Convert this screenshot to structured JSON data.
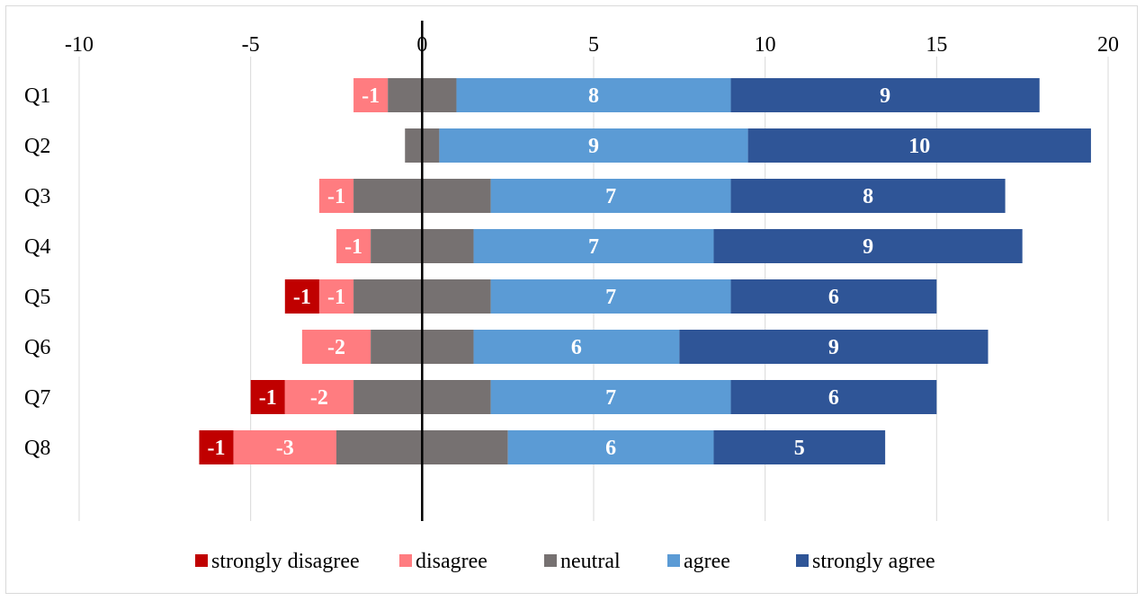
{
  "chart_data": {
    "type": "bar",
    "orientation": "horizontal",
    "stacked": true,
    "diverging": true,
    "title": "",
    "xlabel": "",
    "ylabel": "",
    "xlim": [
      -10,
      20
    ],
    "x_ticks": [
      -10,
      -5,
      0,
      5,
      10,
      15,
      20
    ],
    "x_axis_position": "top",
    "grid": "vertical",
    "legend_position": "bottom",
    "categories": [
      "Q1",
      "Q2",
      "Q3",
      "Q4",
      "Q5",
      "Q6",
      "Q7",
      "Q8"
    ],
    "series": [
      {
        "name": "strongly disagree",
        "color": "#c00000",
        "label_color": "#ffffff",
        "values": [
          0,
          0,
          0,
          0,
          1,
          0,
          1,
          1
        ],
        "labels": [
          "",
          "",
          "",
          "",
          "-1",
          "",
          "-1",
          "-1"
        ]
      },
      {
        "name": "disagree",
        "color": "#ff7c80",
        "label_color": "#ffffff",
        "values": [
          1,
          0,
          1,
          1,
          1,
          2,
          2,
          3
        ],
        "labels": [
          "-1",
          "",
          "-1",
          "-1",
          "-1",
          "-2",
          "-2",
          "-3"
        ]
      },
      {
        "name": "neutral",
        "color": "#767171",
        "label_color": "#ffffff",
        "values": [
          2,
          1,
          4,
          3,
          4,
          3,
          4,
          5
        ],
        "labels": [
          "",
          "",
          "",
          "",
          "",
          "",
          "",
          ""
        ]
      },
      {
        "name": "agree",
        "color": "#5b9bd5",
        "label_color": "#ffffff",
        "values": [
          8,
          9,
          7,
          7,
          7,
          6,
          7,
          6
        ],
        "labels": [
          "8",
          "9",
          "7",
          "7",
          "7",
          "6",
          "7",
          "6"
        ]
      },
      {
        "name": "strongly agree",
        "color": "#2f5597",
        "label_color": "#ffffff",
        "values": [
          9,
          10,
          8,
          9,
          6,
          9,
          6,
          5
        ],
        "labels": [
          "9",
          "10",
          "8",
          "9",
          "6",
          "9",
          "6",
          "5"
        ]
      }
    ]
  }
}
